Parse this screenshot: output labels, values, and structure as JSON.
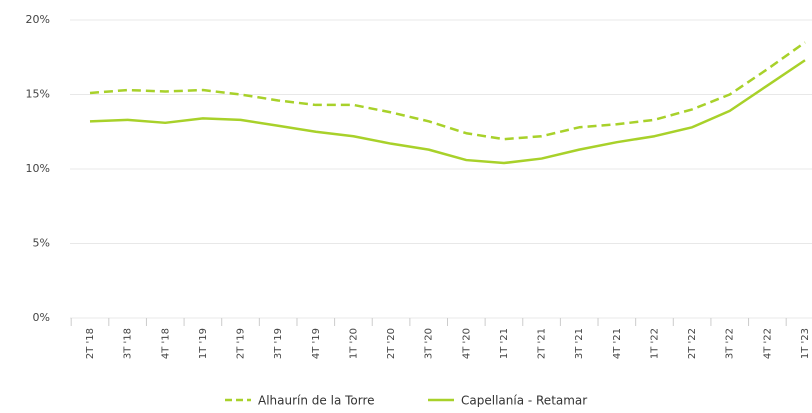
{
  "chart_data": {
    "type": "line",
    "categories": [
      "2T '18",
      "3T '18",
      "4T '18",
      "1T '19",
      "2T '19",
      "3T '19",
      "4T '19",
      "1T '20",
      "2T '20",
      "3T '20",
      "4T '20",
      "1T '21",
      "2T '21",
      "3T '21",
      "4T '21",
      "1T '22",
      "2T '22",
      "3T '22",
      "4T '22",
      "1T '23"
    ],
    "series": [
      {
        "name": "Alhaurín de la Torre",
        "color": "#a8d12a",
        "dash": true,
        "values": [
          15.1,
          15.3,
          15.2,
          15.3,
          15.0,
          14.6,
          14.3,
          14.3,
          13.8,
          13.2,
          12.4,
          12.0,
          12.2,
          12.8,
          13.0,
          13.3,
          14.0,
          15.0,
          16.7,
          18.5
        ]
      },
      {
        "name": "Capellanía - Retamar",
        "color": "#a8d12a",
        "dash": false,
        "values": [
          13.2,
          13.3,
          13.1,
          13.4,
          13.3,
          12.9,
          12.5,
          12.2,
          11.7,
          11.3,
          10.6,
          10.4,
          10.7,
          11.3,
          11.8,
          12.2,
          12.8,
          13.9,
          15.6,
          17.3
        ]
      }
    ],
    "ylim": [
      0,
      20
    ],
    "yticks": [
      {
        "value": 0,
        "label": "0%"
      },
      {
        "value": 5,
        "label": "5%"
      },
      {
        "value": 10,
        "label": "10%"
      },
      {
        "value": 15,
        "label": "15%"
      },
      {
        "value": 20,
        "label": "20%"
      }
    ],
    "grid": true,
    "legend": "bottom"
  }
}
